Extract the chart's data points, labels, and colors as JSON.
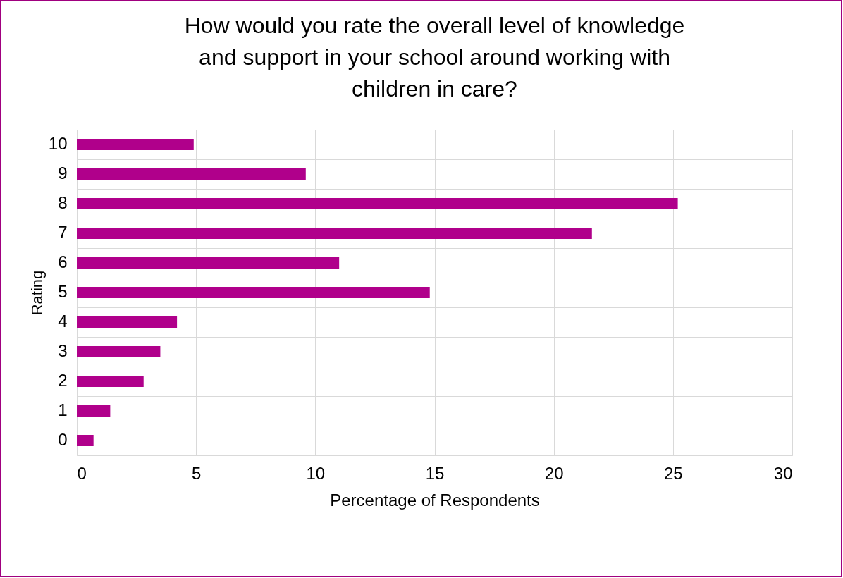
{
  "chart_data": {
    "type": "bar",
    "orientation": "horizontal",
    "title": "How would you rate the overall level of knowledge\nand support in your school around working with\nchildren in care?",
    "xlabel": "Percentage of Respondents",
    "ylabel": "Rating",
    "categories": [
      "10",
      "9",
      "8",
      "7",
      "6",
      "5",
      "4",
      "3",
      "2",
      "1",
      "0"
    ],
    "values": [
      4.9,
      9.6,
      25.2,
      21.6,
      11.0,
      14.8,
      4.2,
      3.5,
      2.8,
      1.4,
      0.7
    ],
    "color": "#b0008b",
    "xlim": [
      0,
      30
    ],
    "xticks": [
      0,
      5,
      10,
      15,
      20,
      25,
      30
    ],
    "grid": true
  }
}
